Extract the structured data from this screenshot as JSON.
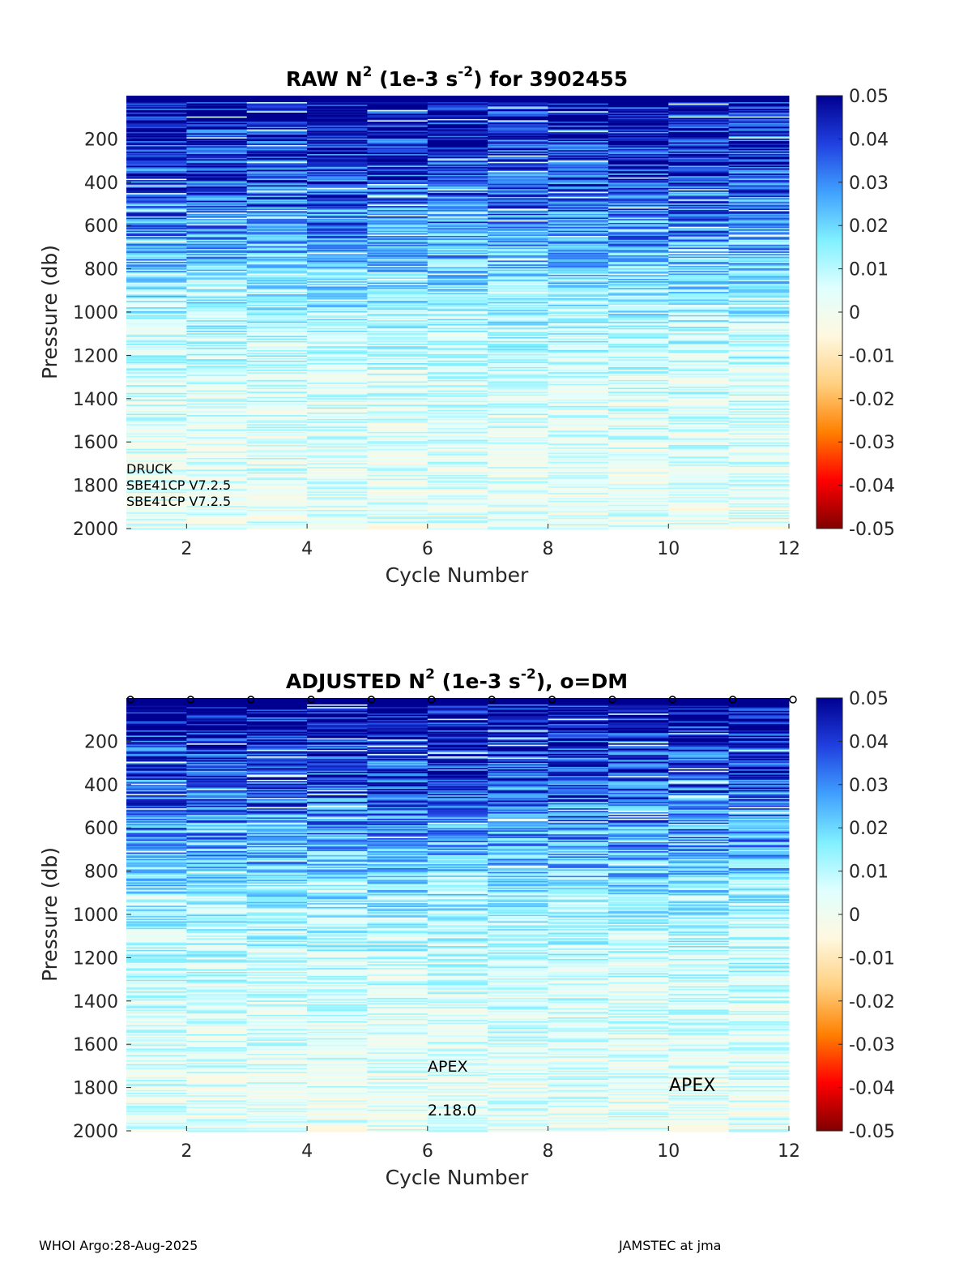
{
  "chart_data": [
    {
      "type": "heatmap",
      "title_parts": [
        "RAW N",
        "2",
        " (1e-3 s",
        "-2",
        ") for 3902455"
      ],
      "xlabel": "Cycle Number",
      "ylabel": "Pressure (db)",
      "xlim": [
        1,
        12
      ],
      "ylim": [
        0,
        2000
      ],
      "xticks": [
        2,
        4,
        6,
        8,
        10,
        12
      ],
      "yticks": [
        200,
        400,
        600,
        800,
        1000,
        1200,
        1400,
        1600,
        1800,
        2000
      ],
      "y_reversed": true,
      "cycles": [
        1,
        2,
        3,
        4,
        5,
        6,
        7,
        8,
        9,
        10,
        11
      ],
      "colorbar": {
        "range": [
          -0.05,
          0.05
        ],
        "ticks": [
          "0.05",
          "0.04",
          "0.03",
          "0.02",
          "0.01",
          "0",
          "-0.01",
          "-0.02",
          "-0.03",
          "-0.04",
          "-0.05"
        ]
      },
      "color_scale": [
        "#800000",
        "#ff0000",
        "#ff8000",
        "#ffd080",
        "#fff8e0",
        "#e0ffff",
        "#80f0ff",
        "#40a0ff",
        "#2040e0",
        "#000090"
      ],
      "profile_mean_N2_by_depth": [
        {
          "p": 100,
          "v": 0.048
        },
        {
          "p": 300,
          "v": 0.04
        },
        {
          "p": 500,
          "v": 0.033
        },
        {
          "p": 700,
          "v": 0.025
        },
        {
          "p": 900,
          "v": 0.016
        },
        {
          "p": 1100,
          "v": 0.01
        },
        {
          "p": 1300,
          "v": 0.007
        },
        {
          "p": 1500,
          "v": 0.005
        },
        {
          "p": 1700,
          "v": 0.004
        },
        {
          "p": 1900,
          "v": 0.003
        }
      ],
      "annotations": [
        "DRUCK",
        "SBE41CP V7.2.5",
        "SBE41CP V7.2.5"
      ]
    },
    {
      "type": "heatmap",
      "title_parts": [
        "ADJUSTED N",
        "2",
        " (1e-3 s",
        "-2",
        "), o=DM"
      ],
      "xlabel": "Cycle Number",
      "ylabel": "Pressure (db)",
      "xlim": [
        1,
        12
      ],
      "ylim": [
        0,
        2000
      ],
      "xticks": [
        2,
        4,
        6,
        8,
        10,
        12
      ],
      "yticks": [
        200,
        400,
        600,
        800,
        1000,
        1200,
        1400,
        1600,
        1800,
        2000
      ],
      "y_reversed": true,
      "cycles": [
        1,
        2,
        3,
        4,
        5,
        6,
        7,
        8,
        9,
        10,
        11
      ],
      "dm_marker_cycles": [
        1,
        2,
        3,
        4,
        5,
        6,
        7,
        8,
        9,
        10,
        11,
        12
      ],
      "dm_marker_symbol": "o",
      "colorbar": {
        "range": [
          -0.05,
          0.05
        ],
        "ticks": [
          "0.05",
          "0.04",
          "0.03",
          "0.02",
          "0.01",
          "0",
          "-0.01",
          "-0.02",
          "-0.03",
          "-0.04",
          "-0.05"
        ]
      },
      "annotations": [
        "APEX",
        "2.18.0",
        "APEX"
      ]
    }
  ],
  "footer": {
    "left": "WHOI Argo:28-Aug-2025",
    "right": "JAMSTEC at jma"
  }
}
